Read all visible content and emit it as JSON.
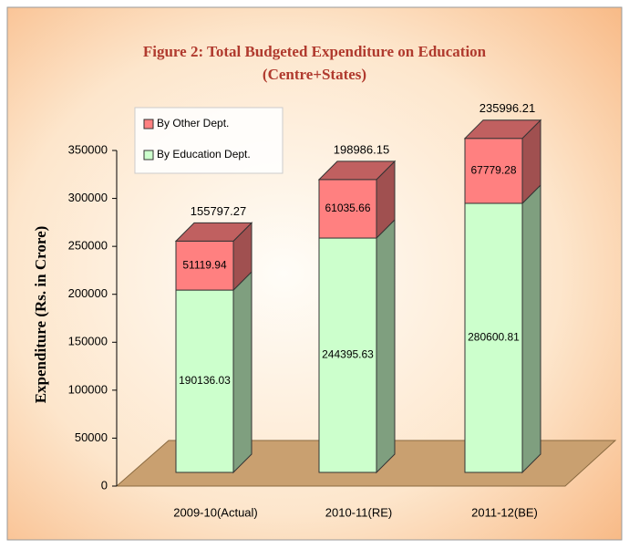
{
  "chart_data": {
    "type": "bar3d_stacked",
    "title": "Figure 2: Total Budgeted Expenditure on Education",
    "subtitle": "(Centre+States)",
    "y_label": "Expenditure (Rs. in Crore)",
    "categories": [
      "2009-10(Actual)",
      "2010-11(RE)",
      "2011-12(BE)"
    ],
    "series": [
      {
        "name": "By Education Dept.",
        "color": "#ccffcc",
        "values": [
          190136.03,
          244395.63,
          280600.81
        ]
      },
      {
        "name": "By Other Dept.",
        "color": "#ff8080",
        "values": [
          51119.94,
          61035.66,
          67779.28
        ]
      }
    ],
    "annotations": [
      "155797.27",
      "198986.15",
      "235996.21"
    ],
    "ylim": [
      0,
      350000
    ],
    "yticks": [
      0,
      50000,
      100000,
      150000,
      200000,
      250000,
      300000,
      350000
    ],
    "legend": "upper left"
  }
}
